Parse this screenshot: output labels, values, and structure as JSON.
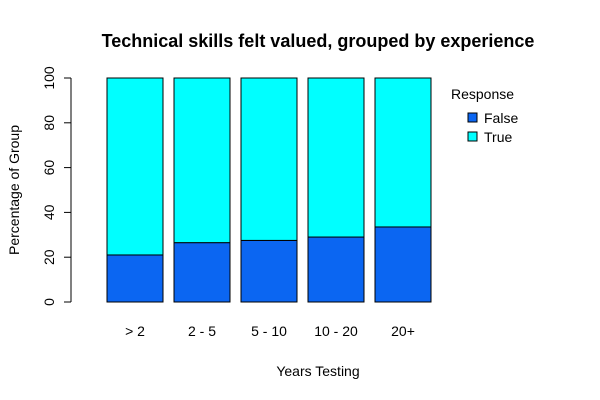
{
  "chart_data": {
    "type": "bar",
    "stacked": true,
    "title": "Technical skills felt valued, grouped by experience",
    "xlabel": "Years Testing",
    "ylabel": "Percentage of Group",
    "ylim": [
      0,
      100
    ],
    "yticks": [
      "0",
      "20",
      "40",
      "60",
      "80",
      "100"
    ],
    "categories": [
      "> 2",
      "2 - 5",
      "5 - 10",
      "10 - 20",
      "20+"
    ],
    "series": [
      {
        "name": "False",
        "color": "#0b66f2",
        "values": [
          21,
          26.5,
          27.5,
          29,
          33.5
        ]
      },
      {
        "name": "True",
        "color": "#00ffff",
        "values": [
          79,
          73.5,
          72.5,
          71,
          66.5
        ]
      }
    ],
    "legend": {
      "title": "Response",
      "position": "right"
    },
    "grid": false
  }
}
